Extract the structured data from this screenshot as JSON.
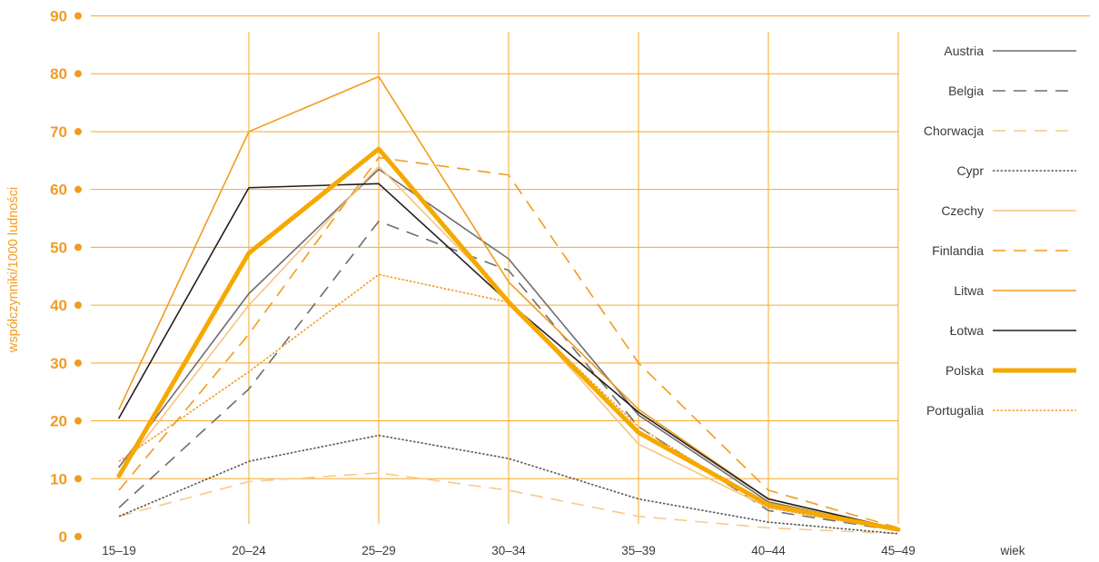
{
  "chart_data": {
    "type": "line",
    "categories": [
      "15–19",
      "20–24",
      "25–29",
      "30–34",
      "35–39",
      "40–44",
      "45–49"
    ],
    "xlabel": "wiek",
    "ylabel": "współczynniki/1000 ludności",
    "ylim": [
      0,
      90
    ],
    "yticks": [
      0,
      10,
      20,
      30,
      40,
      50,
      60,
      70,
      80,
      90
    ],
    "grid": true,
    "legend": "right",
    "series": [
      {
        "name": "Austria",
        "values": [
          12,
          42,
          63.5,
          48,
          21,
          6,
          1.2
        ],
        "color": "#6d6e71",
        "dash": "solid",
        "weight": "regular"
      },
      {
        "name": "Belgia",
        "values": [
          5,
          25.5,
          54.5,
          46,
          19,
          4.5,
          1
        ],
        "color": "#6d6e71",
        "dash": "dashed",
        "weight": "regular"
      },
      {
        "name": "Chorwacja",
        "values": [
          3.5,
          9.5,
          11,
          8,
          3.5,
          1.5,
          0.5
        ],
        "color": "#f9c98b",
        "dash": "dashed",
        "weight": "regular"
      },
      {
        "name": "Cypr",
        "values": [
          3.5,
          13,
          17.5,
          13.5,
          6.5,
          2.5,
          0.5
        ],
        "color": "#58595b",
        "dash": "dotted",
        "weight": "regular"
      },
      {
        "name": "Czechy",
        "values": [
          11,
          40,
          64,
          41,
          16,
          5,
          1
        ],
        "color": "#f8c47e",
        "dash": "solid",
        "weight": "regular"
      },
      {
        "name": "Finlandia",
        "values": [
          8,
          35,
          65.5,
          62.5,
          30,
          8,
          1.5
        ],
        "color": "#f29b1f",
        "dash": "dashed",
        "weight": "regular"
      },
      {
        "name": "Litwa",
        "values": [
          22,
          70,
          79.5,
          44,
          22,
          6.5,
          1.3
        ],
        "color": "#f29b1f",
        "dash": "solid",
        "weight": "regular"
      },
      {
        "name": "Łotwa",
        "values": [
          20.5,
          60.3,
          61,
          40.5,
          21.5,
          6.5,
          1.3
        ],
        "color": "#231f20",
        "dash": "solid",
        "weight": "regular"
      },
      {
        "name": "Polska",
        "values": [
          10.5,
          49,
          67,
          40.5,
          18,
          5.5,
          1.2
        ],
        "color": "#f5a900",
        "dash": "solid",
        "weight": "heavy"
      },
      {
        "name": "Portugalia",
        "values": [
          13,
          28.5,
          45.3,
          40.5,
          19,
          5,
          1
        ],
        "color": "#f29b1f",
        "dash": "dotted",
        "weight": "regular"
      }
    ]
  },
  "colors": {
    "grid": "#f6a82a",
    "axis_ticks": "#f29b1f",
    "axis_title": "#f29b1f",
    "category_labels": "#3a3a3a",
    "legend_labels": "#3a3a3a"
  }
}
